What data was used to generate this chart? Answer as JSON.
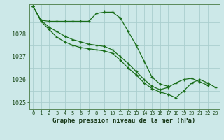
{
  "background_color": "#cce8e8",
  "grid_color": "#aacece",
  "line_color": "#1a6e1a",
  "xlabel": "Graphe pression niveau de la mer (hPa)",
  "xlim": [
    -0.5,
    23.5
  ],
  "ylim": [
    1024.7,
    1029.3
  ],
  "yticks": [
    1025,
    1026,
    1027,
    1028
  ],
  "xticks": [
    0,
    1,
    2,
    3,
    4,
    5,
    6,
    7,
    8,
    9,
    10,
    11,
    12,
    13,
    14,
    15,
    16,
    17,
    18,
    19,
    20,
    21,
    22,
    23
  ],
  "series": [
    [
      1029.2,
      1028.6,
      1028.55,
      1028.55,
      1028.55,
      1028.55,
      1028.55,
      1028.55,
      1028.9,
      1028.95,
      1028.95,
      1028.7,
      1028.1,
      1027.5,
      1026.8,
      1026.1,
      1025.8,
      1025.7,
      null,
      null,
      null,
      null,
      null,
      null
    ],
    [
      1029.2,
      1028.6,
      1028.3,
      1028.1,
      1027.9,
      1027.75,
      1027.65,
      1027.55,
      1027.5,
      1027.45,
      1027.3,
      1027.0,
      1026.7,
      1026.35,
      1026.0,
      1025.7,
      1025.55,
      1025.65,
      1025.85,
      1026.0,
      1026.05,
      1025.9,
      1025.75,
      null
    ],
    [
      1029.2,
      1028.55,
      1028.2,
      1027.85,
      1027.65,
      1027.5,
      1027.4,
      1027.35,
      1027.3,
      1027.25,
      1027.15,
      1026.85,
      1026.5,
      1026.2,
      1025.85,
      1025.6,
      1025.45,
      1025.35,
      1025.2,
      1025.5,
      1025.85,
      1026.0,
      1025.85,
      1025.65
    ]
  ]
}
